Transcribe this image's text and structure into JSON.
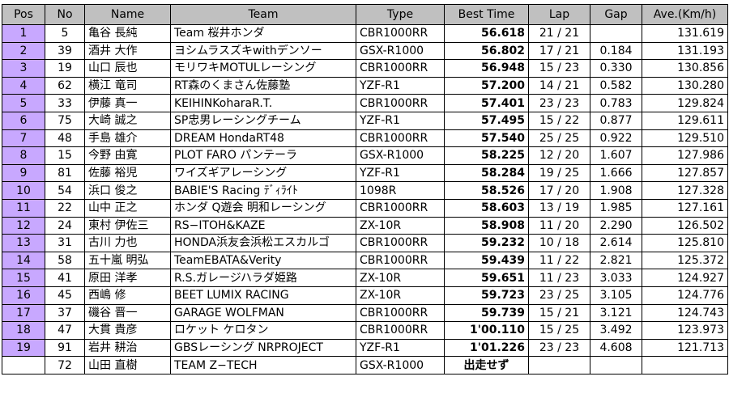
{
  "headers": {
    "pos": "Pos",
    "no": "No",
    "name": "Name",
    "team": "Team",
    "type": "Type",
    "best_time": "Best Time",
    "lap": "Lap",
    "gap": "Gap",
    "ave": "Ave.(Km/h)"
  },
  "rows": [
    {
      "pos": "1",
      "no": "5",
      "name": "亀谷 長純",
      "team": "Team 桜井ホンダ",
      "type": "CBR1000RR",
      "best": "56.618",
      "lap": "21 / 21",
      "gap": "",
      "ave": "131.619"
    },
    {
      "pos": "2",
      "no": "39",
      "name": "酒井 大作",
      "team": "ヨシムラスズキwithデンソー",
      "type": "GSX-R1000",
      "best": "56.802",
      "lap": "17 / 21",
      "gap": "0.184",
      "ave": "131.193"
    },
    {
      "pos": "3",
      "no": "19",
      "name": "山口 辰也",
      "team": "モリワキMOTULレーシング",
      "type": "CBR1000RR",
      "best": "56.948",
      "lap": "15 / 23",
      "gap": "0.330",
      "ave": "130.856"
    },
    {
      "pos": "4",
      "no": "62",
      "name": "横江 竜司",
      "team": "RT森のくまさん佐藤塾",
      "type": "YZF-R1",
      "best": "57.200",
      "lap": "14 / 21",
      "gap": "0.582",
      "ave": "130.280"
    },
    {
      "pos": "5",
      "no": "33",
      "name": "伊藤 真一",
      "team": "KEIHINKoharaR.T.",
      "type": "CBR1000RR",
      "best": "57.401",
      "lap": "23 / 23",
      "gap": "0.783",
      "ave": "129.824"
    },
    {
      "pos": "6",
      "no": "75",
      "name": "大崎 誠之",
      "team": "SP忠男レーシングチーム",
      "type": "YZF-R1",
      "best": "57.495",
      "lap": "15 / 22",
      "gap": "0.877",
      "ave": "129.611"
    },
    {
      "pos": "7",
      "no": "48",
      "name": "手島 雄介",
      "team": "DREAM HondaRT48",
      "type": "CBR1000RR",
      "best": "57.540",
      "lap": "25 / 25",
      "gap": "0.922",
      "ave": "129.510"
    },
    {
      "pos": "8",
      "no": "15",
      "name": "今野 由寛",
      "team": "PLOT FARO パンテーラ",
      "type": "GSX-R1000",
      "best": "58.225",
      "lap": "12 / 20",
      "gap": "1.607",
      "ave": "127.986"
    },
    {
      "pos": "9",
      "no": "81",
      "name": "佐藤 裕児",
      "team": "ワイズギアレーシング",
      "type": "YZF-R1",
      "best": "58.284",
      "lap": "19 / 25",
      "gap": "1.666",
      "ave": "127.857"
    },
    {
      "pos": "10",
      "no": "54",
      "name": "浜口 俊之",
      "team": "BABIE'S Racing ﾃﾞｨﾗｲﾄ",
      "type": "1098R",
      "best": "58.526",
      "lap": "17 / 20",
      "gap": "1.908",
      "ave": "127.328"
    },
    {
      "pos": "11",
      "no": "22",
      "name": "山中 正之",
      "team": "ホンダ Q遊会 明和レーシング",
      "type": "CBR1000RR",
      "best": "58.603",
      "lap": "13 / 19",
      "gap": "1.985",
      "ave": "127.161"
    },
    {
      "pos": "12",
      "no": "24",
      "name": "東村 伊佐三",
      "team": "RS−ITOH&KAZE",
      "type": "ZX-10R",
      "best": "58.908",
      "lap": "11 / 20",
      "gap": "2.290",
      "ave": "126.502"
    },
    {
      "pos": "13",
      "no": "31",
      "name": "古川 力也",
      "team": "HONDA浜友会浜松エスカルゴ",
      "type": "CBR1000RR",
      "best": "59.232",
      "lap": "10 / 18",
      "gap": "2.614",
      "ave": "125.810"
    },
    {
      "pos": "14",
      "no": "58",
      "name": "五十嵐 明弘",
      "team": "TeamEBATA&Verity",
      "type": "CBR1000RR",
      "best": "59.439",
      "lap": "11 / 22",
      "gap": "2.821",
      "ave": "125.372"
    },
    {
      "pos": "15",
      "no": "41",
      "name": "原田 洋孝",
      "team": "R.S.ガレージハラダ姫路",
      "type": "ZX-10R",
      "best": "59.651",
      "lap": "11 / 23",
      "gap": "3.033",
      "ave": "124.927"
    },
    {
      "pos": "16",
      "no": "45",
      "name": "西嶋 修",
      "team": "BEET LUMIX RACING",
      "type": "ZX-10R",
      "best": "59.723",
      "lap": "23 / 25",
      "gap": "3.105",
      "ave": "124.776"
    },
    {
      "pos": "17",
      "no": "37",
      "name": "磯谷 晋一",
      "team": "GARAGE WOLFMAN",
      "type": "CBR1000RR",
      "best": "59.739",
      "lap": "15 / 21",
      "gap": "3.121",
      "ave": "124.743"
    },
    {
      "pos": "18",
      "no": "47",
      "name": "大貫 貴彦",
      "team": "ロケット ケロタン",
      "type": "CBR1000RR",
      "best": "1'00.110",
      "lap": "15 / 25",
      "gap": "3.492",
      "ave": "123.973"
    },
    {
      "pos": "19",
      "no": "91",
      "name": "岩井 耕治",
      "team": "GBSレーシング NRPROJECT",
      "type": "YZF-R1",
      "best": "1'01.226",
      "lap": "23 / 23",
      "gap": "4.608",
      "ave": "121.713"
    },
    {
      "pos": "",
      "no": "72",
      "name": "山田 直樹",
      "team": "TEAM Z−TECH",
      "type": "GSX-R1000",
      "best": "出走せず",
      "lap": "",
      "gap": "",
      "ave": ""
    }
  ],
  "colors": {
    "header_bg": "#c0c0c0",
    "pos_bg": "#c8a8ff",
    "border": "#000000"
  }
}
